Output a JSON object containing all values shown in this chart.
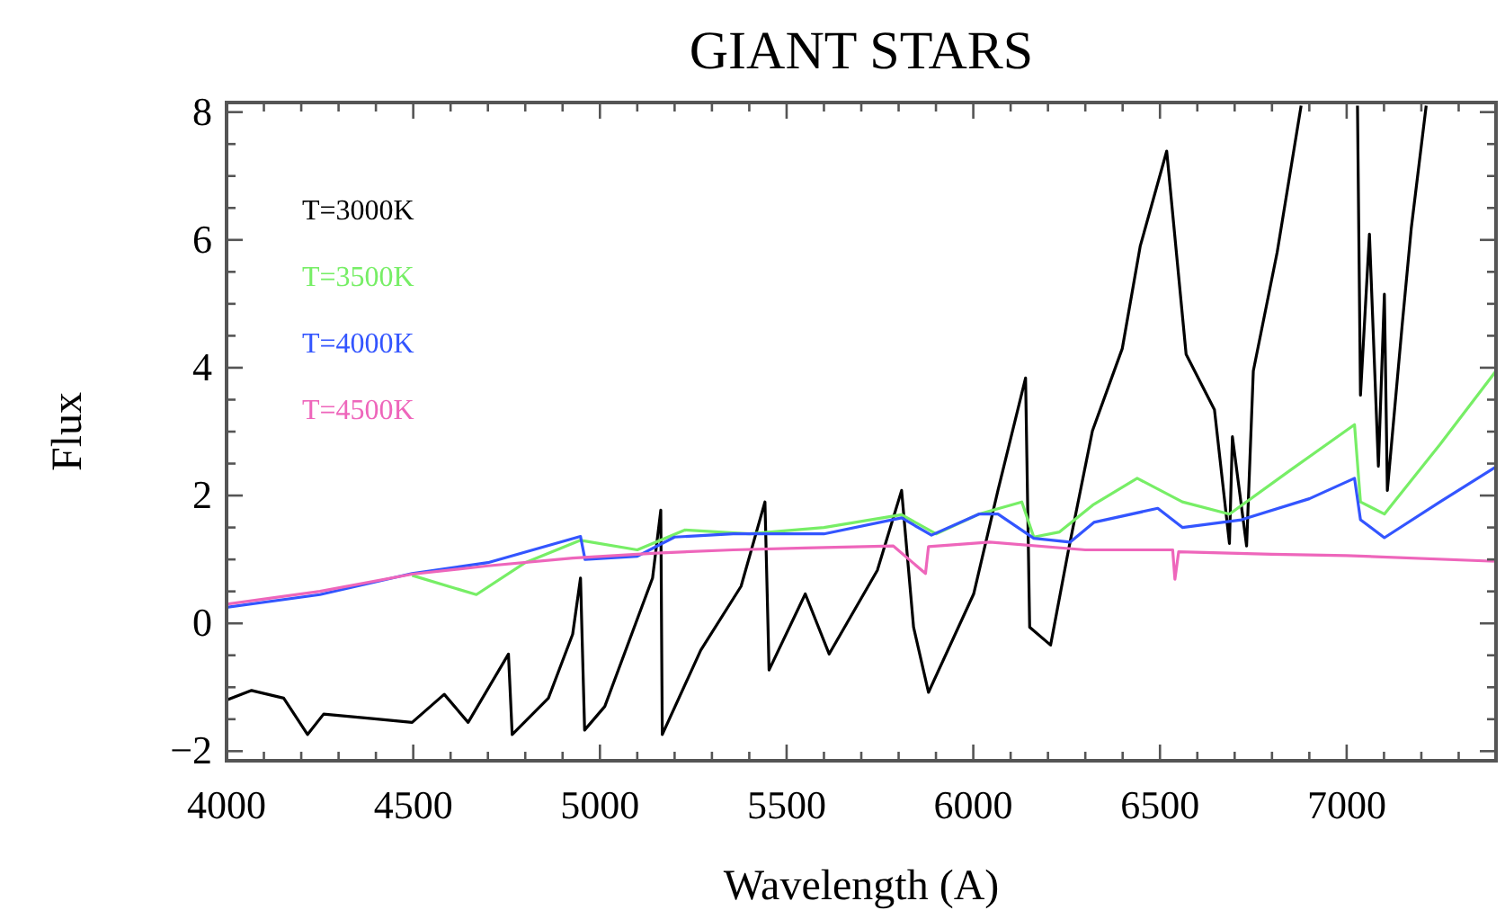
{
  "chart_data": {
    "type": "line",
    "title": "GIANT STARS",
    "xlabel": "Wavelength (A)",
    "ylabel": "Flux",
    "xlim": [
      4000,
      7400
    ],
    "ylim": [
      -2.15,
      8.15
    ],
    "xticks": [
      4000,
      {
        "value": 4100,
        "label": null
      },
      {
        "value": 4200,
        "label": null
      },
      {
        "value": 4300,
        "label": null
      },
      {
        "value": 4400,
        "label": null
      },
      4500,
      {
        "value": 4600,
        "label": null
      },
      {
        "value": 4700,
        "label": null
      },
      {
        "value": 4800,
        "label": null
      },
      {
        "value": 4900,
        "label": null
      },
      5000,
      {
        "value": 5100,
        "label": null
      },
      {
        "value": 5200,
        "label": null
      },
      {
        "value": 5300,
        "label": null
      },
      {
        "value": 5400,
        "label": null
      },
      5500,
      {
        "value": 5600,
        "label": null
      },
      {
        "value": 5700,
        "label": null
      },
      {
        "value": 5800,
        "label": null
      },
      {
        "value": 5900,
        "label": null
      },
      6000,
      {
        "value": 6100,
        "label": null
      },
      {
        "value": 6200,
        "label": null
      },
      {
        "value": 6300,
        "label": null
      },
      {
        "value": 6400,
        "label": null
      },
      6500,
      {
        "value": 6600,
        "label": null
      },
      {
        "value": 6700,
        "label": null
      },
      {
        "value": 6800,
        "label": null
      },
      {
        "value": 6900,
        "label": null
      },
      7000,
      {
        "value": 7100,
        "label": null
      },
      {
        "value": 7200,
        "label": null
      },
      {
        "value": 7300,
        "label": null
      }
    ],
    "yticks": [
      {
        "value": -2,
        "label": "−2"
      },
      {
        "value": -1.5,
        "label": null
      },
      {
        "value": -1,
        "label": null
      },
      {
        "value": -0.5,
        "label": null
      },
      0,
      {
        "value": 0.5,
        "label": null
      },
      {
        "value": 1,
        "label": null
      },
      {
        "value": 1.5,
        "label": null
      },
      2,
      {
        "value": 2.5,
        "label": null
      },
      {
        "value": 3,
        "label": null
      },
      {
        "value": 3.5,
        "label": null
      },
      4,
      {
        "value": 4.5,
        "label": null
      },
      {
        "value": 5,
        "label": null
      },
      {
        "value": 5.5,
        "label": null
      },
      6,
      {
        "value": 6.5,
        "label": null
      },
      {
        "value": 7,
        "label": null
      },
      {
        "value": 7.5,
        "label": null
      },
      8
    ],
    "legend": "top left",
    "grid": false,
    "series": [
      {
        "name": "T=3000K",
        "color": "#000000",
        "x": [
          4000,
          4067,
          4153,
          4217,
          4260,
          4390,
          4497,
          4583,
          4647,
          4755,
          4765,
          4862,
          4927,
          4948,
          4959,
          5013,
          5141,
          5163,
          5167,
          5270,
          5378,
          5442,
          5453,
          5550,
          5614,
          5743,
          5808,
          5840,
          5880,
          6001,
          6066,
          6140,
          6151,
          6207,
          6255,
          6319,
          6399,
          6447,
          6518,
          6570,
          6646,
          6686,
          6694,
          6732,
          6750,
          6814,
          6878,
          6950,
          7029,
          7037,
          7061,
          7085,
          7101,
          7109,
          7149,
          7173,
          7213
        ],
        "values": [
          -1.2,
          -1.05,
          -1.17,
          -1.74,
          -1.42,
          -1.49,
          -1.55,
          -1.11,
          -1.55,
          -0.48,
          -1.74,
          -1.17,
          -0.17,
          0.71,
          -1.67,
          -1.3,
          0.71,
          1.77,
          -1.74,
          -0.42,
          0.58,
          1.9,
          -0.73,
          0.46,
          -0.48,
          0.83,
          2.08,
          -0.06,
          -1.08,
          0.46,
          2.08,
          3.84,
          -0.06,
          -0.34,
          1.15,
          3.01,
          4.3,
          5.9,
          7.39,
          4.21,
          3.34,
          1.25,
          2.92,
          1.21,
          3.95,
          5.81,
          8.1,
          null,
          8.1,
          3.57,
          6.09,
          2.46,
          5.15,
          2.08,
          4.69,
          6.18,
          8.1
        ]
      },
      {
        "name": "T=3500K",
        "color": "#77ee66",
        "x": [
          4497,
          4669,
          4800,
          4948,
          5100,
          5227,
          5400,
          5600,
          5808,
          5900,
          6015,
          6130,
          6162,
          6231,
          6320,
          6439,
          6560,
          6686,
          6850,
          7021,
          7037,
          7101,
          7250,
          7400
        ],
        "values": [
          0.75,
          0.45,
          0.95,
          1.3,
          1.15,
          1.46,
          1.4,
          1.5,
          1.7,
          1.4,
          1.71,
          1.9,
          1.35,
          1.43,
          1.85,
          2.27,
          1.9,
          1.71,
          2.4,
          3.11,
          1.9,
          1.71,
          2.8,
          3.95
        ]
      },
      {
        "name": "T=4000K",
        "color": "#3355ff",
        "x": [
          4000,
          4250,
          4497,
          4700,
          4948,
          4960,
          5100,
          5200,
          5357,
          5600,
          5808,
          5888,
          6015,
          6066,
          6162,
          6259,
          6323,
          6494,
          6560,
          6718,
          6900,
          7021,
          7037,
          7101,
          7250,
          7400
        ],
        "values": [
          0.25,
          0.45,
          0.78,
          0.95,
          1.36,
          1.0,
          1.05,
          1.35,
          1.4,
          1.4,
          1.65,
          1.38,
          1.71,
          1.71,
          1.33,
          1.27,
          1.58,
          1.8,
          1.5,
          1.62,
          1.95,
          2.27,
          1.62,
          1.34,
          1.9,
          2.45
        ]
      },
      {
        "name": "T=4500K",
        "color": "#ee66bb",
        "x": [
          4000,
          4250,
          4497,
          4700,
          4927,
          5150,
          5357,
          5550,
          5786,
          5872,
          5880,
          6044,
          6300,
          6534,
          6540,
          6550,
          6800,
          7000,
          7400
        ],
        "values": [
          0.3,
          0.5,
          0.77,
          0.9,
          1.02,
          1.1,
          1.15,
          1.18,
          1.21,
          0.78,
          1.2,
          1.27,
          1.15,
          1.15,
          0.69,
          1.12,
          1.08,
          1.06,
          0.97
        ]
      }
    ]
  }
}
